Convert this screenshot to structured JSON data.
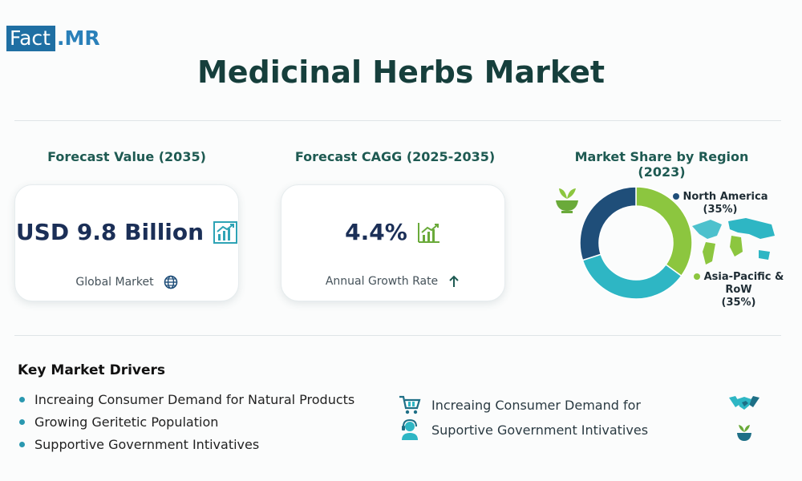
{
  "logo": {
    "part1": "Fact",
    "part2": ".MR"
  },
  "title": "Medicinal Herbs Market",
  "forecast_value": {
    "heading": "Forecast Value (2035)",
    "value": "USD 9.8 Billion",
    "sub": "Global Market"
  },
  "forecast_cagr": {
    "heading": "Forecast CAGG (2025-2035)",
    "value": "4.4%",
    "sub": "Annual Growth Rate"
  },
  "chart_data": {
    "type": "pie",
    "title": "Market Share by Region (2023)",
    "slices": [
      {
        "label": "North America",
        "share_text": "(35%)",
        "value": 35,
        "color": "#8cc63f"
      },
      {
        "label": "Asia-Pacific & RoW",
        "share_text": "(35%)",
        "value": 35,
        "color": "#2eb6c4"
      },
      {
        "label": "",
        "share_text": "",
        "value": 30,
        "color": "#1f4e79"
      }
    ],
    "donut": true
  },
  "drivers": {
    "title": "Key Market Drivers",
    "items": [
      "Increaing Consumer Demand for Natural Products",
      "Growing Geritetic Population",
      "Supportive Government Intivatives"
    ],
    "right_items": [
      "Increaing Consumer Demand for",
      "Suportive Government Intivatives"
    ]
  },
  "colors": {
    "accent": "#2a98b0",
    "heading": "#1e5a52",
    "value": "#1b2f57",
    "green": "#8cc63f",
    "teal": "#2eb6c4",
    "navy": "#1f4e79"
  },
  "icons": [
    "growth-chart-icon",
    "globe-icon",
    "arrow-up-icon",
    "herb-bowl-icon",
    "world-map-icon",
    "cart-icon",
    "support-person-icon",
    "handshake-icon",
    "plant-bowl-icon"
  ]
}
